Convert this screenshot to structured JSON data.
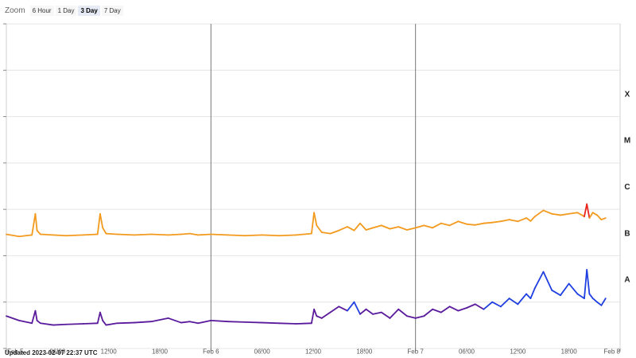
{
  "zoom": {
    "label": "Zoom",
    "buttons": [
      "6 Hour",
      "1 Day",
      "3 Day",
      "7 Day"
    ],
    "active": "3 Day"
  },
  "updated_text": "Updated 2023-02-07 22:37 UTC",
  "chart_data": {
    "type": "line",
    "title": "",
    "xlabel": "",
    "ylabel": "",
    "x_range_hours": [
      0,
      72
    ],
    "y_scale": "log",
    "flare_classes": [
      "X",
      "M",
      "C",
      "B",
      "A"
    ],
    "x_ticks": [
      {
        "t": 0,
        "label": "Feb 5"
      },
      {
        "t": 6,
        "label": "06:00"
      },
      {
        "t": 12,
        "label": "12:00"
      },
      {
        "t": 18,
        "label": "18:00"
      },
      {
        "t": 24,
        "label": "Feb 6"
      },
      {
        "t": 30,
        "label": "06:00"
      },
      {
        "t": 36,
        "label": "12:00"
      },
      {
        "t": 42,
        "label": "18:00"
      },
      {
        "t": 48,
        "label": "Feb 7"
      },
      {
        "t": 54,
        "label": "06:00"
      },
      {
        "t": 60,
        "label": "12:00"
      },
      {
        "t": 66,
        "label": "18:00"
      },
      {
        "t": 72,
        "label": "Feb 8"
      }
    ],
    "day_lines": [
      24,
      48
    ],
    "grid": true,
    "colors": {
      "long_low": "#f39a1e",
      "long_high": "#e8241c",
      "short_high": "#1f3fe0",
      "short_low": "#5a1a9c"
    },
    "series": [
      {
        "key": "long",
        "x": [
          0,
          1.5,
          3,
          3.4,
          3.6,
          4,
          5.5,
          7,
          9,
          10.7,
          11,
          11.3,
          11.7,
          13,
          15,
          17,
          19,
          20.5,
          21.5,
          22.5,
          24,
          26,
          28,
          30,
          32,
          34,
          35.8,
          36.1,
          36.4,
          37,
          38,
          39,
          40,
          40.8,
          41.5,
          42.2,
          43,
          44,
          45,
          46,
          47,
          48,
          49,
          50,
          51,
          52,
          53,
          54,
          55,
          56,
          57,
          58,
          59,
          60,
          61,
          61.5,
          62,
          63,
          64,
          65,
          66,
          67,
          67.8,
          68.1,
          68.4,
          68.8,
          69.3,
          69.8,
          70.3
        ],
        "y": [
          2.9e-07,
          2.6e-07,
          2.8e-07,
          8e-07,
          3.5e-07,
          2.9e-07,
          2.8e-07,
          2.7e-07,
          2.8e-07,
          2.9e-07,
          8e-07,
          4e-07,
          3e-07,
          2.9e-07,
          2.8e-07,
          2.9e-07,
          2.8e-07,
          2.9e-07,
          3e-07,
          2.8e-07,
          2.9e-07,
          2.8e-07,
          2.7e-07,
          2.8e-07,
          2.7e-07,
          2.8e-07,
          3e-07,
          8.5e-07,
          4.5e-07,
          3.2e-07,
          3e-07,
          3.5e-07,
          4.2e-07,
          3.5e-07,
          5e-07,
          3.6e-07,
          4e-07,
          4.5e-07,
          3.8e-07,
          4.2e-07,
          3.6e-07,
          4e-07,
          4.5e-07,
          4e-07,
          5e-07,
          4.5e-07,
          5.5e-07,
          4.8e-07,
          4.6e-07,
          5e-07,
          5.2e-07,
          5.5e-07,
          6e-07,
          5.5e-07,
          6.5e-07,
          5.6e-07,
          7e-07,
          9.5e-07,
          8e-07,
          7.5e-07,
          8e-07,
          8.5e-07,
          7e-07,
          1.3e-06,
          6.5e-07,
          8.5e-07,
          7.5e-07,
          6e-07,
          6.5e-07
        ]
      },
      {
        "key": "short",
        "x": [
          0,
          1.5,
          3,
          3.4,
          3.6,
          4,
          5.5,
          7,
          9,
          10.7,
          11,
          11.3,
          11.7,
          13,
          15,
          17,
          19,
          20.5,
          21.5,
          22.5,
          24,
          26,
          28,
          30,
          32,
          34,
          35.8,
          36.1,
          36.4,
          37,
          38,
          39,
          40,
          40.8,
          41.5,
          42.2,
          43,
          44,
          45,
          46,
          47,
          48,
          49,
          50,
          51,
          52,
          53,
          54,
          55,
          56,
          57,
          58,
          59,
          60,
          61,
          61.5,
          62,
          63,
          64,
          65,
          66,
          67,
          67.8,
          68.1,
          68.4,
          68.8,
          69.3,
          69.8,
          70.3
        ],
        "y": [
          5e-09,
          4e-09,
          3.5e-09,
          6.5e-09,
          4e-09,
          3.5e-09,
          3.2e-09,
          3.3e-09,
          3.4e-09,
          3.5e-09,
          6e-09,
          4e-09,
          3.2e-09,
          3.5e-09,
          3.6e-09,
          3.8e-09,
          4.5e-09,
          3.6e-09,
          3.8e-09,
          3.5e-09,
          4e-09,
          3.8e-09,
          3.7e-09,
          3.6e-09,
          3.5e-09,
          3.4e-09,
          3.5e-09,
          7e-09,
          5e-09,
          4.5e-09,
          6e-09,
          8e-09,
          6.5e-09,
          1e-08,
          5.5e-09,
          7e-09,
          5.5e-09,
          6e-09,
          4.5e-09,
          7e-09,
          5e-09,
          4.5e-09,
          5e-09,
          7e-09,
          6e-09,
          8e-09,
          6.5e-09,
          7.5e-09,
          9e-09,
          7e-09,
          1e-08,
          8e-09,
          1.2e-08,
          9e-09,
          1.5e-08,
          1.2e-08,
          2e-08,
          4.5e-08,
          1.8e-08,
          1.4e-08,
          2.5e-08,
          1.5e-08,
          1.2e-08,
          5e-08,
          1.5e-08,
          1.2e-08,
          1e-08,
          8.5e-09,
          1.2e-08
        ]
      }
    ]
  }
}
